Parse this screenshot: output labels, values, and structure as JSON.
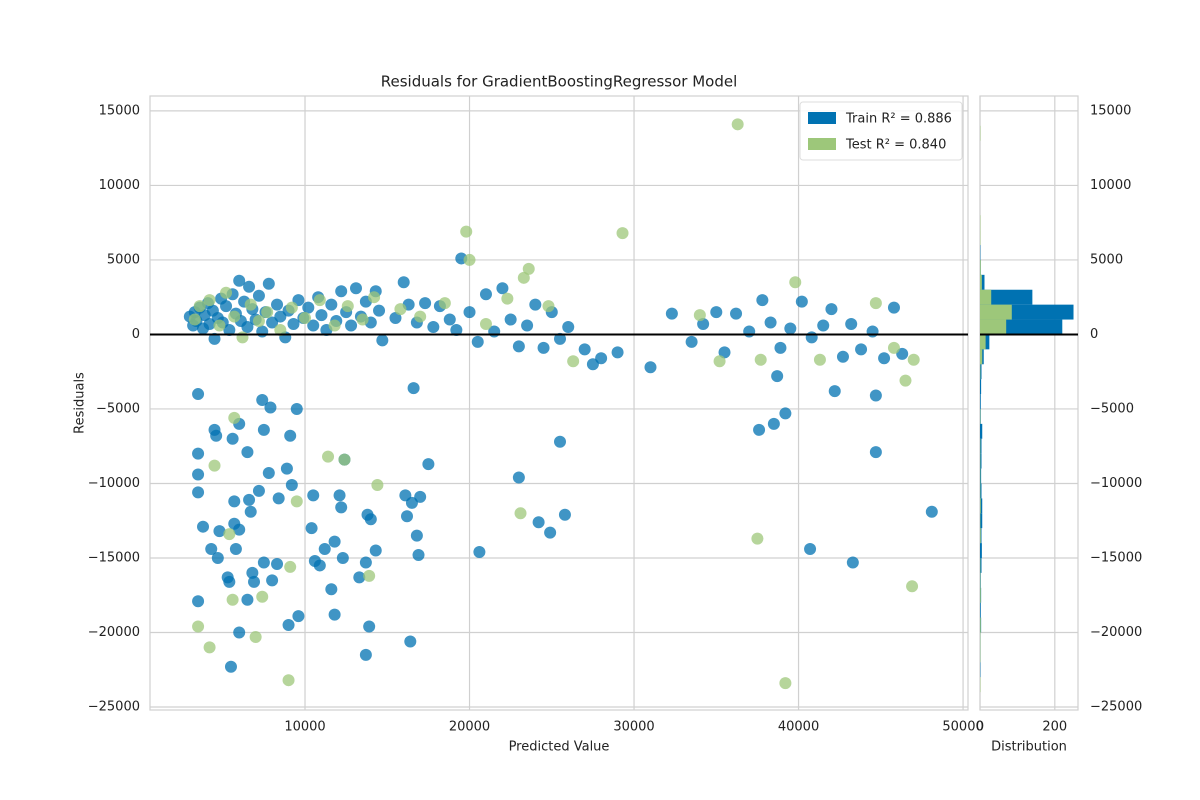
{
  "chart_data": [
    {
      "type": "scatter",
      "title": "Residuals for GradientBoostingRegressor Model",
      "x_label": "Predicted Value",
      "y_label": "Residuals",
      "xlim": [
        578,
        50300
      ],
      "ylim": [
        -25200,
        16000
      ],
      "xticks": [
        10000,
        20000,
        30000,
        40000,
        50000
      ],
      "yticks": [
        {
          "value": -25000,
          "label": "−25000"
        },
        {
          "value": -20000,
          "label": "−20000"
        },
        {
          "value": -15000,
          "label": "−15000"
        },
        {
          "value": -10000,
          "label": "−10000"
        },
        {
          "value": -5000,
          "label": "−5000"
        },
        0,
        5000,
        10000,
        15000
      ],
      "hline": 0,
      "grid": true,
      "legend": "upper right",
      "series": [
        {
          "name": "Train R² = 0.886",
          "color": "#0072b2",
          "x": [
            3500,
            3500,
            3500,
            3500,
            3500,
            3800,
            4300,
            4500,
            4600,
            4700,
            4800,
            5300,
            5400,
            5500,
            5600,
            5700,
            5700,
            5800,
            6000,
            6000,
            6000,
            6500,
            6500,
            6600,
            6700,
            6800,
            6900,
            7200,
            7400,
            7500,
            7500,
            7800,
            7900,
            8000,
            8300,
            8400,
            8900,
            9000,
            9100,
            9200,
            9500,
            9600,
            10400,
            10500,
            10600,
            10900,
            11200,
            11600,
            11800,
            11800,
            12100,
            12200,
            12300,
            12400,
            13300,
            13700,
            13700,
            13800,
            13900,
            14000,
            14300,
            16100,
            16200,
            16400,
            16500,
            16600,
            16800,
            16900,
            17000,
            17500,
            20600,
            23000,
            24200,
            24900,
            25500,
            25800,
            37600,
            38500,
            39200,
            40700,
            43300,
            44700,
            48100,
            38700,
            42200,
            44700,
            3000,
            3200,
            3300,
            3400,
            3600,
            3800,
            3900,
            4100,
            4200,
            4400,
            4500,
            4700,
            4900,
            5000,
            5200,
            5400,
            5600,
            5800,
            6000,
            6100,
            6300,
            6500,
            6600,
            6800,
            7000,
            7200,
            7400,
            7600,
            7800,
            8000,
            8300,
            8500,
            8800,
            9000,
            9300,
            9600,
            9900,
            10200,
            10500,
            10800,
            11000,
            11300,
            11600,
            11900,
            12200,
            12500,
            12800,
            13100,
            13400,
            13700,
            14000,
            14300,
            14500,
            14700,
            15500,
            16000,
            16300,
            16800,
            17300,
            17800,
            18200,
            18800,
            19500,
            19200,
            20000,
            20500,
            21000,
            21500,
            22000,
            22500,
            23000,
            23500,
            24000,
            24500,
            25000,
            25500,
            26000,
            27000,
            27500,
            28000,
            29000,
            31000,
            32300,
            33500,
            34200,
            35000,
            35500,
            36200,
            37000,
            37800,
            38300,
            38900,
            39500,
            40200,
            40800,
            41500,
            42000,
            42700,
            43200,
            43800,
            44500,
            45200,
            45800,
            46300
          ],
          "y": [
            -4000,
            -8000,
            -9400,
            -10600,
            -17900,
            -12900,
            -14400,
            -6400,
            -6800,
            -15000,
            -13200,
            -16300,
            -16600,
            -22300,
            -7000,
            -11200,
            -12700,
            -14400,
            -6000,
            -13100,
            -20000,
            -7900,
            -17800,
            -11100,
            -11900,
            -16000,
            -16600,
            -10500,
            -4400,
            -6400,
            -15300,
            -9300,
            -4900,
            -16500,
            -15400,
            -11000,
            -9000,
            -19500,
            -6800,
            -10100,
            -5000,
            -18900,
            -13000,
            -10800,
            -15200,
            -15500,
            -14400,
            -17100,
            -18800,
            -13900,
            -10800,
            -11600,
            -15000,
            -8400,
            -16300,
            -21500,
            -15300,
            -12100,
            -19600,
            -12400,
            -14500,
            -10800,
            -12200,
            -20600,
            -11300,
            -3600,
            -13500,
            -14800,
            -10900,
            -8700,
            -14600,
            -9600,
            -12600,
            -13300,
            -7200,
            -12100,
            -6400,
            -6000,
            -5300,
            -14400,
            -15300,
            -7900,
            -11900,
            -2800,
            -3800,
            -4100,
            1200,
            600,
            1500,
            900,
            1800,
            400,
            1300,
            2100,
            700,
            1600,
            -300,
            1100,
            2400,
            800,
            1900,
            300,
            2700,
            1400,
            3600,
            900,
            2200,
            500,
            3200,
            1700,
            1000,
            2600,
            200,
            1500,
            3400,
            800,
            2000,
            1200,
            -200,
            1600,
            700,
            2300,
            1100,
            1800,
            600,
            2500,
            1300,
            300,
            2000,
            900,
            2900,
            1500,
            600,
            3100,
            1200,
            2200,
            800,
            2900,
            1600,
            -400,
            1100,
            3500,
            2000,
            800,
            2100,
            500,
            1900,
            1000,
            5100,
            300,
            1500,
            -500,
            2700,
            200,
            3100,
            1000,
            -800,
            600,
            2000,
            -900,
            1500,
            -300,
            500,
            -1000,
            -2000,
            -1600,
            -1200,
            -2200,
            1400,
            -500,
            700,
            1500,
            -1200,
            1400,
            200,
            2300,
            800,
            -900,
            400,
            2200,
            -200,
            600,
            1700,
            -1500,
            700,
            -1000,
            200,
            -1600,
            1800,
            -1300
          ]
        },
        {
          "name": "Test R² = 0.840",
          "color": "#9dc77a",
          "x": [
            3300,
            3600,
            4200,
            4800,
            5200,
            5700,
            6200,
            6700,
            7200,
            7700,
            8500,
            9200,
            10000,
            10900,
            11800,
            12600,
            13500,
            14200,
            15800,
            17000,
            18500,
            19800,
            20000,
            21000,
            22300,
            23300,
            23600,
            24800,
            26300,
            29300,
            34000,
            35200,
            37700,
            39800,
            41300,
            44700,
            45800,
            46500,
            47000,
            36300,
            39200,
            37500,
            46900,
            3500,
            4200,
            4500,
            5600,
            5700,
            7000,
            7400,
            9000,
            9100,
            9500,
            11400,
            12400,
            13900,
            14400,
            23100,
            5400
          ],
          "y": [
            1000,
            1900,
            2300,
            600,
            2800,
            1200,
            -200,
            2000,
            900,
            1500,
            300,
            1800,
            1100,
            2300,
            600,
            1900,
            1000,
            2500,
            1700,
            1200,
            2100,
            6900,
            5000,
            700,
            2400,
            3800,
            4400,
            1900,
            -1800,
            6800,
            1300,
            -1800,
            -1700,
            3500,
            -1700,
            2100,
            -900,
            -3100,
            -1700,
            14100,
            -23400,
            -13700,
            -16900,
            -19600,
            -21000,
            -8800,
            -17800,
            -5600,
            -20300,
            -17600,
            -23200,
            -15600,
            -11200,
            -8200,
            -8400,
            -16200,
            -10100,
            -12000,
            -13400
          ]
        }
      ]
    },
    {
      "type": "histogram",
      "orientation": "horizontal",
      "x_label": "Distribution",
      "xlim": [
        0,
        262
      ],
      "xticks": [
        0,
        200
      ],
      "ylim": [
        -25200,
        16000
      ],
      "yticks": [
        {
          "value": -25000,
          "label": "−25000"
        },
        {
          "value": -20000,
          "label": "−20000"
        },
        {
          "value": -15000,
          "label": "−15000"
        },
        {
          "value": -10000,
          "label": "−10000"
        },
        {
          "value": -5000,
          "label": "−5000"
        },
        0,
        5000,
        10000,
        15000
      ],
      "hline": 0,
      "grid": true,
      "bins": [
        -24000,
        -23000,
        -22000,
        -21000,
        -20000,
        -19000,
        -18000,
        -17000,
        -16000,
        -15000,
        -14000,
        -13000,
        -12000,
        -11000,
        -10000,
        -9000,
        -8000,
        -7000,
        -6000,
        -5000,
        -4000,
        -3000,
        -2000,
        -1000,
        0,
        1000,
        2000,
        3000,
        4000,
        5000,
        6000,
        7000,
        8000,
        9000,
        10000,
        11000,
        12000,
        13000,
        14000,
        15000
      ],
      "series": [
        {
          "color": "#0072b2",
          "values": [
            0,
            1,
            1,
            1,
            3,
            2,
            3,
            2,
            4,
            5,
            4,
            6,
            6,
            4,
            3,
            4,
            4,
            6,
            2,
            2,
            3,
            4,
            10,
            25,
            220,
            250,
            140,
            12,
            2,
            1,
            0,
            0,
            0,
            0,
            0,
            0,
            0,
            0,
            0
          ]
        },
        {
          "color": "#9dc77a",
          "values": [
            1,
            0,
            1,
            1,
            2,
            0,
            2,
            1,
            1,
            0,
            2,
            1,
            2,
            1,
            1,
            1,
            1,
            0,
            1,
            0,
            0,
            1,
            6,
            15,
            70,
            85,
            30,
            5,
            2,
            0,
            1,
            1,
            0,
            0,
            0,
            0,
            0,
            1,
            0
          ]
        }
      ]
    }
  ]
}
